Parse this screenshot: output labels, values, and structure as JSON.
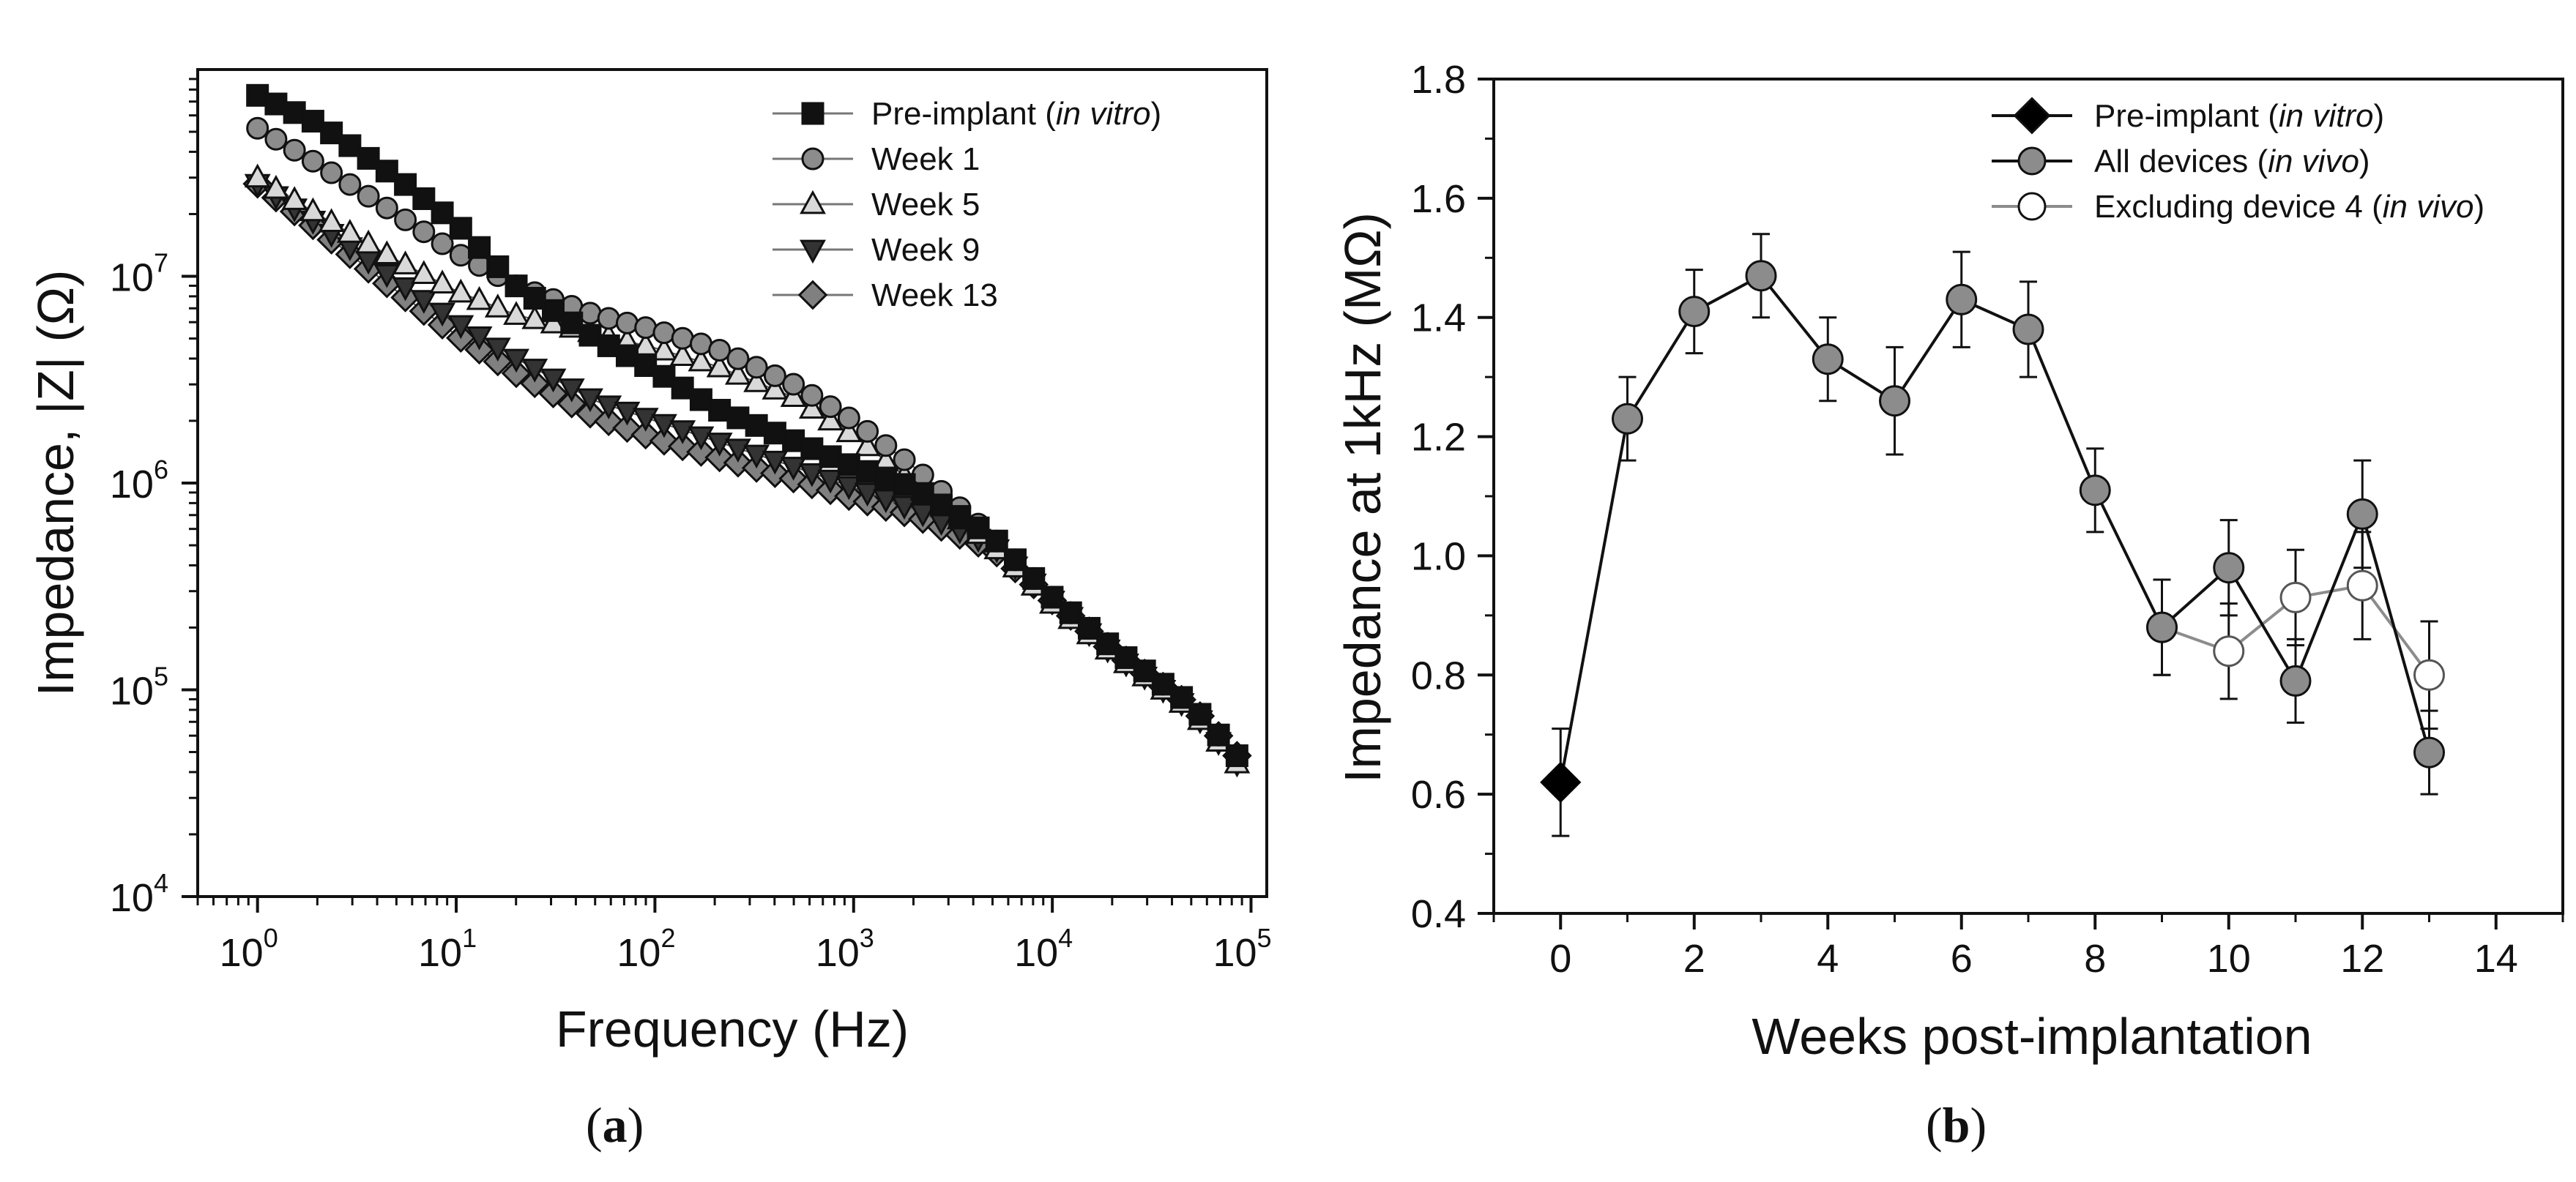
{
  "chart_data": [
    {
      "panel": "(a)",
      "panel_open": "(",
      "panel_letter": "a",
      "panel_close": ")",
      "type": "scatter",
      "xscale": "log",
      "yscale": "log",
      "xlabel": "Frequency (Hz)",
      "ylabel": "Impedance, |Z| (Ω)",
      "xlim": [
        0.5,
        120000
      ],
      "ylim": [
        10000,
        100000000
      ],
      "x_ticks": [
        {
          "value": 1,
          "base": "10",
          "exp": "0"
        },
        {
          "value": 10,
          "base": "10",
          "exp": "1"
        },
        {
          "value": 100,
          "base": "10",
          "exp": "2"
        },
        {
          "value": 1000,
          "base": "10",
          "exp": "3"
        },
        {
          "value": 10000,
          "base": "10",
          "exp": "4"
        },
        {
          "value": 100000,
          "base": "10",
          "exp": "5"
        }
      ],
      "y_ticks": [
        {
          "value": 10000,
          "base": "10",
          "exp": "4"
        },
        {
          "value": 100000,
          "base": "10",
          "exp": "5"
        },
        {
          "value": 1000000,
          "base": "10",
          "exp": "6"
        },
        {
          "value": 10000000,
          "base": "10",
          "exp": "7"
        }
      ],
      "legend": "top-right",
      "series": [
        {
          "name": "Pre-implant",
          "qualifier": "in vitro",
          "marker": "square",
          "fill": "#111111",
          "x": [
            1,
            2,
            5,
            10,
            20,
            50,
            100,
            200,
            500,
            1000,
            2000,
            5000,
            10000,
            20000,
            50000,
            85000
          ],
          "y": [
            75000000,
            55000000,
            30000000,
            18000000,
            9000000,
            5000000,
            3500000,
            2300000,
            1600000,
            1200000,
            950000,
            550000,
            280000,
            160000,
            85000,
            48000
          ]
        },
        {
          "name": "Week 1",
          "qualifier": "",
          "marker": "circle",
          "fill": "#8c8c8c",
          "x": [
            1,
            2,
            5,
            10,
            20,
            50,
            100,
            200,
            500,
            1000,
            2000,
            5000,
            10000,
            20000,
            50000,
            85000
          ],
          "y": [
            52000000,
            35000000,
            20000000,
            13000000,
            9000000,
            6500000,
            5500000,
            4500000,
            3000000,
            2000000,
            1200000,
            550000,
            280000,
            160000,
            85000,
            48000
          ]
        },
        {
          "name": "Week 5",
          "qualifier": "",
          "marker": "triangle-up",
          "fill": "#d9d9d9",
          "x": [
            1,
            2,
            5,
            10,
            20,
            50,
            100,
            200,
            500,
            1000,
            2000,
            5000,
            10000,
            20000,
            50000,
            85000
          ],
          "y": [
            30000000,
            20000000,
            12000000,
            8500000,
            6500000,
            5300000,
            4500000,
            3700000,
            2600000,
            1700000,
            1000000,
            500000,
            260000,
            150000,
            80000,
            44000
          ]
        },
        {
          "name": "Week 9",
          "qualifier": "",
          "marker": "triangle-down",
          "fill": "#333333",
          "x": [
            1,
            2,
            5,
            10,
            20,
            50,
            100,
            200,
            500,
            1000,
            2000,
            5000,
            10000,
            20000,
            50000,
            85000
          ],
          "y": [
            28000000,
            18000000,
            9500000,
            6000000,
            4000000,
            2500000,
            2000000,
            1600000,
            1200000,
            950000,
            750000,
            500000,
            270000,
            150000,
            80000,
            44000
          ]
        },
        {
          "name": "Week 13",
          "qualifier": "",
          "marker": "diamond",
          "fill": "#808080",
          "x": [
            1,
            2,
            5,
            10,
            20,
            50,
            100,
            200,
            500,
            1000,
            2000,
            5000,
            10000,
            20000,
            50000,
            85000
          ],
          "y": [
            28000000,
            17000000,
            8500000,
            5200000,
            3400000,
            2100000,
            1650000,
            1350000,
            1050000,
            850000,
            700000,
            480000,
            270000,
            155000,
            83000,
            48000
          ]
        }
      ]
    },
    {
      "panel": "(b)",
      "panel_open": "(",
      "panel_letter": "b",
      "panel_close": ")",
      "type": "line",
      "xlabel": "Weeks post-implantation",
      "ylabel": "Impedance at 1kHz (MΩ)",
      "xlim": [
        -1,
        15
      ],
      "ylim": [
        0.4,
        1.8
      ],
      "x_ticks": [
        0,
        2,
        4,
        6,
        8,
        10,
        12,
        14
      ],
      "x_tick_labels": [
        "0",
        "2",
        "4",
        "6",
        "8",
        "10",
        "12",
        "14"
      ],
      "y_ticks": [
        0.4,
        0.6,
        0.8,
        1.0,
        1.2,
        1.4,
        1.6,
        1.8
      ],
      "y_tick_labels": [
        "0.4",
        "0.6",
        "0.8",
        "1.0",
        "1.2",
        "1.4",
        "1.6",
        "1.8"
      ],
      "legend": "top-right",
      "series": [
        {
          "name": "Pre-implant",
          "qualifier": "in vitro",
          "marker": "diamond",
          "fill": "#000000",
          "line": "none",
          "x": [
            0
          ],
          "y": [
            0.62
          ],
          "err": [
            0.09
          ]
        },
        {
          "name": "All devices",
          "qualifier": "in vivo",
          "marker": "circle",
          "fill": "#8c8c8c",
          "line": "#111111",
          "x": [
            1,
            2,
            3,
            4,
            5,
            6,
            7,
            8,
            9,
            10,
            11,
            12,
            13
          ],
          "y": [
            1.23,
            1.41,
            1.47,
            1.33,
            1.26,
            1.43,
            1.38,
            1.11,
            0.88,
            0.98,
            0.79,
            1.07,
            0.67
          ],
          "err": [
            0.07,
            0.07,
            0.07,
            0.07,
            0.09,
            0.08,
            0.08,
            0.07,
            0.08,
            0.08,
            0.07,
            0.09,
            0.07
          ]
        },
        {
          "name": "Excluding device 4",
          "qualifier": "in vivo",
          "marker": "circle",
          "fill": "#ffffff",
          "line": "#8c8c8c",
          "x": [
            9,
            10,
            11,
            12,
            13
          ],
          "y": [
            0.88,
            0.84,
            0.93,
            0.95,
            0.8
          ],
          "err": [
            0.08,
            0.08,
            0.08,
            0.09,
            0.09
          ]
        }
      ],
      "connector": {
        "from_series": "Pre-implant",
        "to_series": "All devices",
        "color": "#111111"
      }
    }
  ],
  "colors": {
    "axis": "#111111",
    "errorbar": "#111111",
    "marker_stroke": "#111111"
  }
}
